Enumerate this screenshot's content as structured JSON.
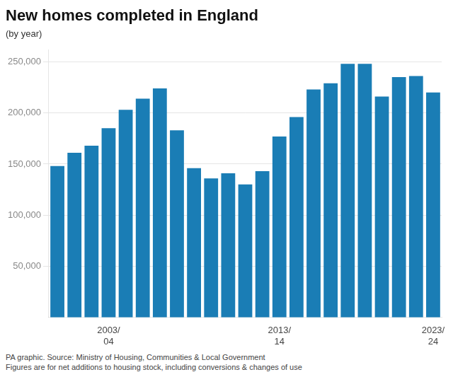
{
  "chart_data": {
    "type": "bar",
    "title": "New homes completed in England",
    "subtitle": "(by year)",
    "annotations": [
      "PA graphic. Source: Ministry of Housing, Communities & Local Government",
      "Figures are for net additions to housing stock, including conversions & changes of use"
    ],
    "categories": [
      null,
      null,
      null,
      "2003/\n04",
      null,
      null,
      null,
      null,
      null,
      null,
      null,
      null,
      null,
      "2013/\n14",
      null,
      null,
      null,
      null,
      null,
      null,
      null,
      null,
      "2023/\n24"
    ],
    "values": [
      148000,
      161000,
      168000,
      185000,
      203000,
      214000,
      224000,
      183000,
      146000,
      136000,
      141000,
      130000,
      143000,
      177000,
      196000,
      223000,
      229000,
      248000,
      248000,
      216000,
      235000,
      236000,
      220000
    ],
    "color": "#1a7db5",
    "ylim": [
      0,
      262000
    ],
    "yticks": [
      {
        "value": 50000,
        "label": "50,000"
      },
      {
        "value": 100000,
        "label": "100,000"
      },
      {
        "value": 150000,
        "label": "150,000"
      },
      {
        "value": 200000,
        "label": "200,000"
      },
      {
        "value": 250000,
        "label": "250,000"
      }
    ],
    "grid": true
  }
}
